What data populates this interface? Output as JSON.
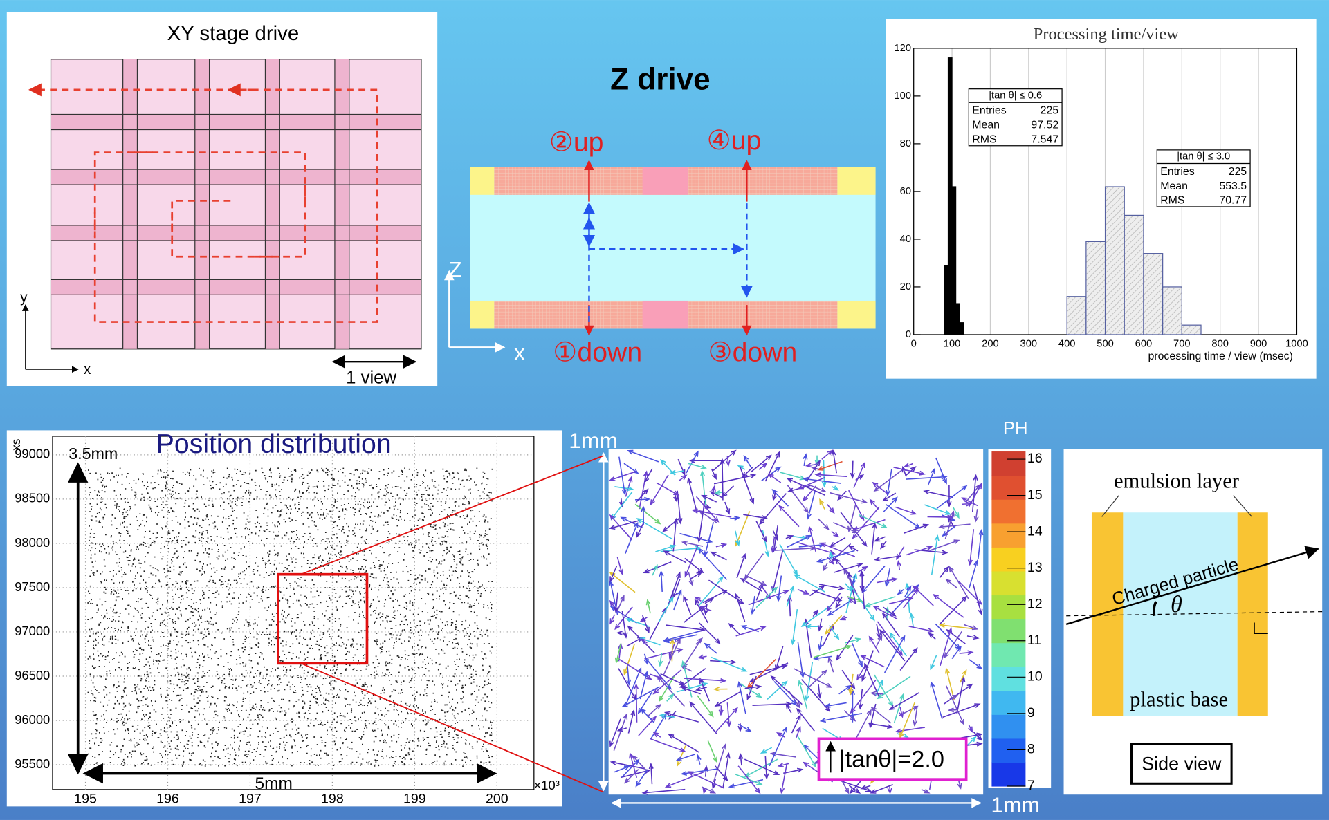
{
  "xy_stage": {
    "title": "XY stage drive",
    "axis_y": "y",
    "axis_x": "x",
    "scale_label": "1 view"
  },
  "z_drive": {
    "title": "Z drive",
    "axis_z": "Z",
    "axis_x": "x",
    "step_2": "②up",
    "step_4": "④up",
    "step_1": "①down",
    "step_3": "③down"
  },
  "histogram": {
    "title": "Processing time/view",
    "x_label": "processing time / view (msec)",
    "xlim": [
      0,
      1000
    ],
    "xticks": [
      0,
      100,
      200,
      300,
      400,
      500,
      600,
      700,
      800,
      900,
      1000
    ],
    "ylim": [
      0,
      120
    ],
    "yticks": [
      0,
      20,
      40,
      60,
      80,
      100,
      120
    ],
    "series": [
      {
        "name": "|tan θ| ≤ 0.6",
        "color": "#000000",
        "bins": [
          80,
          90,
          100,
          110,
          120,
          130
        ],
        "counts": [
          29,
          116,
          62,
          13,
          5
        ],
        "stats": [
          {
            "label": "Entries",
            "value": 225
          },
          {
            "label": "Mean",
            "value": 97.52
          },
          {
            "label": "RMS",
            "value": 7.547
          }
        ]
      },
      {
        "name": "|tan θ| ≤ 3.0",
        "color": "#d8d8d8",
        "bins": [
          400,
          450,
          500,
          550,
          600,
          650,
          700,
          750
        ],
        "counts": [
          16,
          39,
          62,
          50,
          34,
          20,
          4
        ],
        "stats": [
          {
            "label": "Entries",
            "value": 225
          },
          {
            "label": "Mean",
            "value": 553.5
          },
          {
            "label": "RMS",
            "value": 70.77
          }
        ]
      }
    ]
  },
  "position": {
    "title": "Position distribution",
    "y_axis_label": "xs",
    "x_multiplier": "×10³",
    "xlim": [
      194.6,
      200.45
    ],
    "xticks": [
      195,
      196,
      197,
      198,
      199,
      200
    ],
    "ylim": [
      95220,
      99210
    ],
    "yticks": [
      95500,
      96000,
      96500,
      97000,
      97500,
      98000,
      98500,
      99000
    ],
    "height_label": "3.5mm",
    "width_label": "5mm"
  },
  "zoom": {
    "height_label": "1mm",
    "width_label": "1mm",
    "legend": "|tanθ|=2.0"
  },
  "colorbar": {
    "title": "PH",
    "ylim": [
      7,
      16
    ],
    "ticks": [
      7,
      8,
      9,
      10,
      11,
      12,
      13,
      14,
      15,
      16
    ]
  },
  "side_view": {
    "layer_label": "emulsion layer",
    "particle_label": "Charged particle",
    "angle_label": "θ",
    "base_label": "plastic base",
    "caption": "Side view"
  }
}
